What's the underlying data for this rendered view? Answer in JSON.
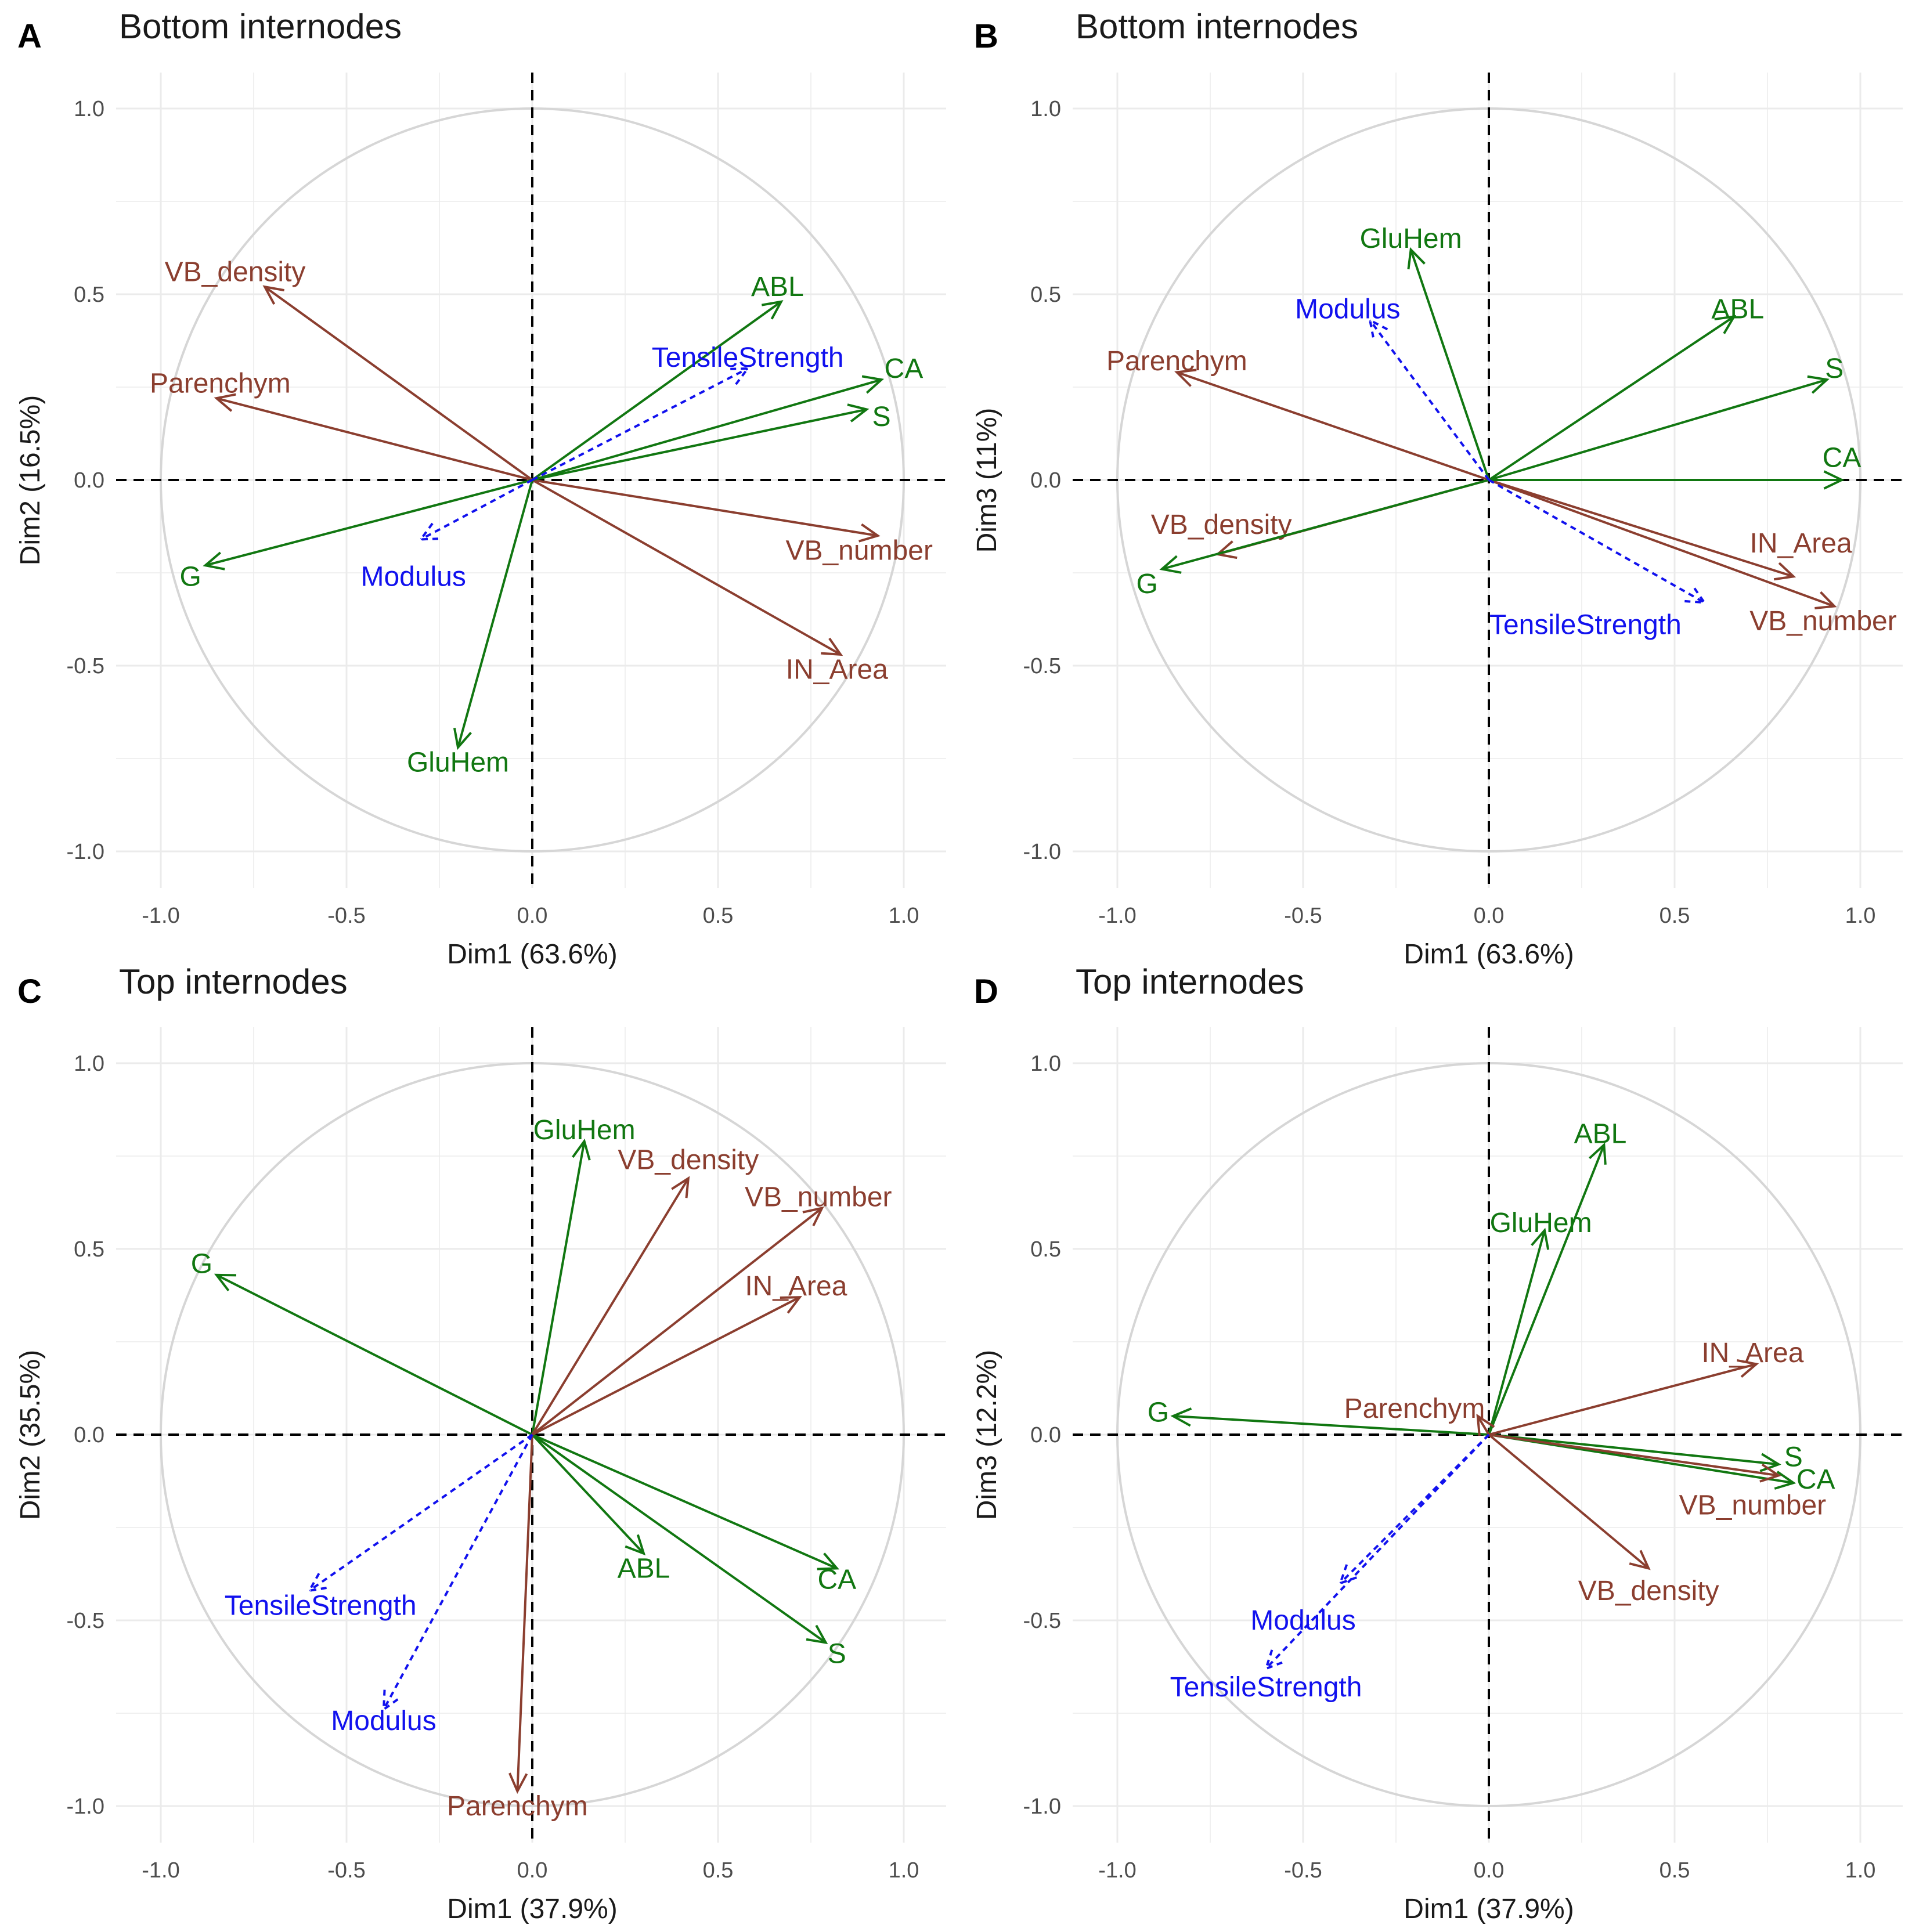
{
  "colors": {
    "green": "#117711",
    "brown": "#8B3E2F",
    "blue": "#1111EE",
    "circle": "#D6D6D6",
    "grid": "#EBEBEB",
    "axis_text": "#4D4D4D",
    "text": "#1A1A1A"
  },
  "chart_data": [
    {
      "type": "scatter",
      "panel_label": "A",
      "title": "Bottom internodes",
      "xlabel": "Dim1 (63.6%)",
      "ylabel": "Dim2 (16.5%)",
      "xlim": [
        -1.0,
        1.0
      ],
      "ylim": [
        -1.0,
        1.0
      ],
      "xticks": [
        "-1.0",
        "-0.5",
        "0.0",
        "0.5",
        "1.0"
      ],
      "yticks": [
        "-1.0",
        "-0.5",
        "0.0",
        "0.5",
        "1.0"
      ],
      "grid": true,
      "vectors": [
        {
          "name": "VB_density",
          "x": -0.72,
          "y": 0.52,
          "group": "brown",
          "dashed": false,
          "lx": -0.8,
          "ly": 0.56
        },
        {
          "name": "Parenchym",
          "x": -0.85,
          "y": 0.22,
          "group": "brown",
          "dashed": false,
          "lx": -0.84,
          "ly": 0.26
        },
        {
          "name": "VB_number",
          "x": 0.93,
          "y": -0.15,
          "group": "brown",
          "dashed": false,
          "lx": 0.88,
          "ly": -0.19
        },
        {
          "name": "IN_Area",
          "x": 0.83,
          "y": -0.47,
          "group": "brown",
          "dashed": false,
          "lx": 0.82,
          "ly": -0.51
        },
        {
          "name": "ABL",
          "x": 0.67,
          "y": 0.48,
          "group": "green",
          "dashed": false,
          "lx": 0.66,
          "ly": 0.52
        },
        {
          "name": "CA",
          "x": 0.94,
          "y": 0.27,
          "group": "green",
          "dashed": false,
          "lx": 1.0,
          "ly": 0.3
        },
        {
          "name": "S",
          "x": 0.9,
          "y": 0.19,
          "group": "green",
          "dashed": false,
          "lx": 0.94,
          "ly": 0.17
        },
        {
          "name": "G",
          "x": -0.88,
          "y": -0.23,
          "group": "green",
          "dashed": false,
          "lx": -0.92,
          "ly": -0.26
        },
        {
          "name": "GluHem",
          "x": -0.2,
          "y": -0.72,
          "group": "green",
          "dashed": false,
          "lx": -0.2,
          "ly": -0.76
        },
        {
          "name": "TensileStrength",
          "x": 0.58,
          "y": 0.3,
          "group": "blue",
          "dashed": true,
          "lx": 0.58,
          "ly": 0.33
        },
        {
          "name": "Modulus",
          "x": -0.3,
          "y": -0.16,
          "group": "blue",
          "dashed": true,
          "lx": -0.32,
          "ly": -0.26
        }
      ]
    },
    {
      "type": "scatter",
      "panel_label": "B",
      "title": "Bottom internodes",
      "xlabel": "Dim1 (63.6%)",
      "ylabel": "Dim3 (11%)",
      "xlim": [
        -1.0,
        1.0
      ],
      "ylim": [
        -1.0,
        1.0
      ],
      "xticks": [
        "-1.0",
        "-0.5",
        "0.0",
        "0.5",
        "1.0"
      ],
      "yticks": [
        "-1.0",
        "-0.5",
        "0.0",
        "0.5",
        "1.0"
      ],
      "grid": true,
      "vectors": [
        {
          "name": "Parenchym",
          "x": -0.84,
          "y": 0.29,
          "group": "brown",
          "dashed": false,
          "lx": -0.84,
          "ly": 0.32
        },
        {
          "name": "VB_density",
          "x": -0.73,
          "y": -0.2,
          "group": "brown",
          "dashed": false,
          "lx": -0.72,
          "ly": -0.12
        },
        {
          "name": "IN_Area",
          "x": 0.82,
          "y": -0.26,
          "group": "brown",
          "dashed": false,
          "lx": 0.84,
          "ly": -0.17
        },
        {
          "name": "VB_number",
          "x": 0.93,
          "y": -0.34,
          "group": "brown",
          "dashed": false,
          "lx": 0.9,
          "ly": -0.38
        },
        {
          "name": "GluHem",
          "x": -0.21,
          "y": 0.62,
          "group": "green",
          "dashed": false,
          "lx": -0.21,
          "ly": 0.65
        },
        {
          "name": "ABL",
          "x": 0.66,
          "y": 0.44,
          "group": "green",
          "dashed": false,
          "lx": 0.67,
          "ly": 0.46
        },
        {
          "name": "S",
          "x": 0.91,
          "y": 0.27,
          "group": "green",
          "dashed": false,
          "lx": 0.93,
          "ly": 0.3
        },
        {
          "name": "CA",
          "x": 0.95,
          "y": 0.0,
          "group": "green",
          "dashed": false,
          "lx": 0.95,
          "ly": 0.06
        },
        {
          "name": "G",
          "x": -0.88,
          "y": -0.24,
          "group": "green",
          "dashed": false,
          "lx": -0.92,
          "ly": -0.28
        },
        {
          "name": "Modulus",
          "x": -0.32,
          "y": 0.43,
          "group": "blue",
          "dashed": true,
          "lx": -0.38,
          "ly": 0.46
        },
        {
          "name": "TensileStrength",
          "x": 0.58,
          "y": -0.33,
          "group": "blue",
          "dashed": true,
          "lx": 0.26,
          "ly": -0.39
        }
      ]
    },
    {
      "type": "scatter",
      "panel_label": "C",
      "title": "Top internodes",
      "xlabel": "Dim1 (37.9%)",
      "ylabel": "Dim2 (35.5%)",
      "xlim": [
        -1.0,
        1.0
      ],
      "ylim": [
        -1.0,
        1.0
      ],
      "xticks": [
        "-1.0",
        "-0.5",
        "0.0",
        "0.5",
        "1.0"
      ],
      "yticks": [
        "-1.0",
        "-0.5",
        "0.0",
        "0.5",
        "1.0"
      ],
      "grid": true,
      "vectors": [
        {
          "name": "GluHem",
          "x": 0.14,
          "y": 0.79,
          "group": "green",
          "dashed": false,
          "lx": 0.14,
          "ly": 0.82
        },
        {
          "name": "G",
          "x": -0.85,
          "y": 0.43,
          "group": "green",
          "dashed": false,
          "lx": -0.89,
          "ly": 0.46
        },
        {
          "name": "ABL",
          "x": 0.3,
          "y": -0.32,
          "group": "green",
          "dashed": false,
          "lx": 0.3,
          "ly": -0.36
        },
        {
          "name": "CA",
          "x": 0.82,
          "y": -0.36,
          "group": "green",
          "dashed": false,
          "lx": 0.82,
          "ly": -0.39
        },
        {
          "name": "S",
          "x": 0.79,
          "y": -0.56,
          "group": "green",
          "dashed": false,
          "lx": 0.82,
          "ly": -0.59
        },
        {
          "name": "VB_density",
          "x": 0.42,
          "y": 0.69,
          "group": "brown",
          "dashed": false,
          "lx": 0.42,
          "ly": 0.74
        },
        {
          "name": "VB_number",
          "x": 0.78,
          "y": 0.61,
          "group": "brown",
          "dashed": false,
          "lx": 0.77,
          "ly": 0.64
        },
        {
          "name": "IN_Area",
          "x": 0.72,
          "y": 0.37,
          "group": "brown",
          "dashed": false,
          "lx": 0.71,
          "ly": 0.4
        },
        {
          "name": "Parenchym",
          "x": -0.04,
          "y": -0.96,
          "group": "brown",
          "dashed": false,
          "lx": -0.04,
          "ly": -1.0
        },
        {
          "name": "TensileStrength",
          "x": -0.6,
          "y": -0.42,
          "group": "blue",
          "dashed": true,
          "lx": -0.57,
          "ly": -0.46
        },
        {
          "name": "Modulus",
          "x": -0.4,
          "y": -0.74,
          "group": "blue",
          "dashed": true,
          "lx": -0.4,
          "ly": -0.77
        }
      ]
    },
    {
      "type": "scatter",
      "panel_label": "D",
      "title": "Top internodes",
      "xlabel": "Dim1 (37.9%)",
      "ylabel": "Dim3 (12.2%)",
      "xlim": [
        -1.0,
        1.0
      ],
      "ylim": [
        -1.0,
        1.0
      ],
      "xticks": [
        "-1.0",
        "-0.5",
        "0.0",
        "0.5",
        "1.0"
      ],
      "yticks": [
        "-1.0",
        "-0.5",
        "0.0",
        "0.5",
        "1.0"
      ],
      "grid": true,
      "vectors": [
        {
          "name": "ABL",
          "x": 0.31,
          "y": 0.78,
          "group": "green",
          "dashed": false,
          "lx": 0.3,
          "ly": 0.81
        },
        {
          "name": "GluHem",
          "x": 0.15,
          "y": 0.55,
          "group": "green",
          "dashed": false,
          "lx": 0.14,
          "ly": 0.57
        },
        {
          "name": "G",
          "x": -0.85,
          "y": 0.05,
          "group": "green",
          "dashed": false,
          "lx": -0.89,
          "ly": 0.06
        },
        {
          "name": "S",
          "x": 0.78,
          "y": -0.08,
          "group": "green",
          "dashed": false,
          "lx": 0.82,
          "ly": -0.06
        },
        {
          "name": "CA",
          "x": 0.82,
          "y": -0.13,
          "group": "green",
          "dashed": false,
          "lx": 0.88,
          "ly": -0.12
        },
        {
          "name": "IN_Area",
          "x": 0.72,
          "y": 0.19,
          "group": "brown",
          "dashed": false,
          "lx": 0.71,
          "ly": 0.22
        },
        {
          "name": "Parenchym",
          "x": -0.03,
          "y": 0.05,
          "group": "brown",
          "dashed": false,
          "lx": -0.2,
          "ly": 0.07
        },
        {
          "name": "VB_number",
          "x": 0.78,
          "y": -0.11,
          "group": "brown",
          "dashed": false,
          "lx": 0.71,
          "ly": -0.19
        },
        {
          "name": "VB_density",
          "x": 0.43,
          "y": -0.36,
          "group": "brown",
          "dashed": false,
          "lx": 0.43,
          "ly": -0.42
        },
        {
          "name": "Modulus",
          "x": -0.4,
          "y": -0.4,
          "group": "blue",
          "dashed": true,
          "lx": -0.5,
          "ly": -0.5
        },
        {
          "name": "TensileStrength",
          "x": -0.6,
          "y": -0.63,
          "group": "blue",
          "dashed": true,
          "lx": -0.6,
          "ly": -0.68
        }
      ]
    }
  ]
}
